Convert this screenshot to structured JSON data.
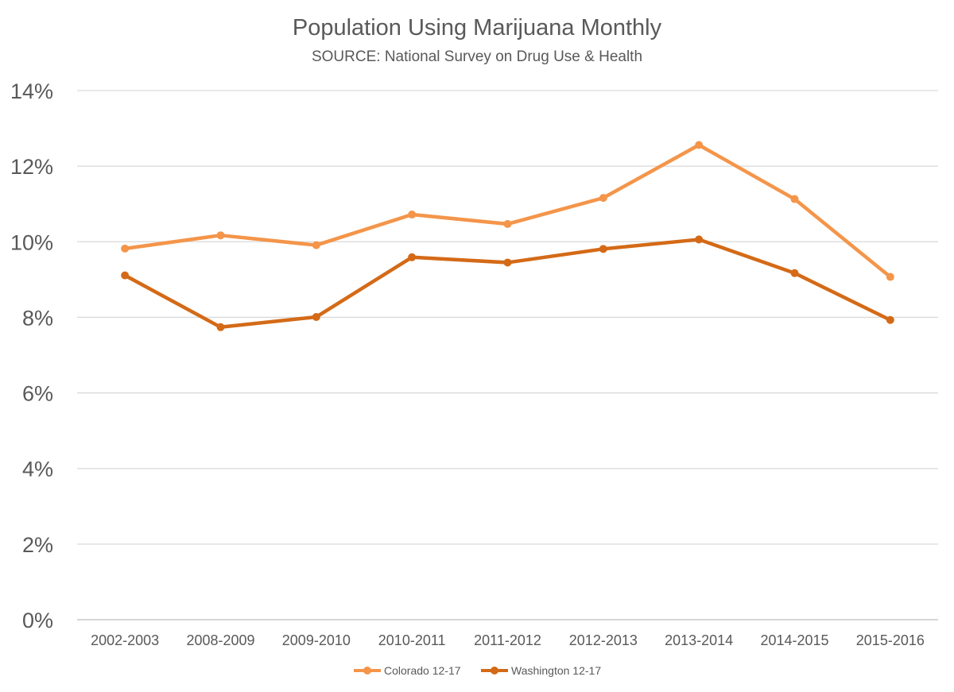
{
  "chart_data": {
    "type": "line",
    "title": "Population Using Marijuana Monthly",
    "subtitle": "SOURCE: National Survey on Drug Use & Health",
    "xlabel": "",
    "ylabel": "",
    "categories": [
      "2002-2003",
      "2008-2009",
      "2009-2010",
      "2010-2011",
      "2011-2012",
      "2012-2013",
      "2013-2014",
      "2014-2015",
      "2015-2016"
    ],
    "y_ticks": [
      "0%",
      "2%",
      "4%",
      "6%",
      "8%",
      "10%",
      "12%",
      "14%"
    ],
    "ylim": [
      0,
      14
    ],
    "grid": true,
    "legend_position": "bottom",
    "series": [
      {
        "name": "Colorado 12-17",
        "color": "#f4954a",
        "values": [
          9.82,
          10.17,
          9.91,
          10.72,
          10.47,
          11.16,
          12.56,
          11.13,
          9.07
        ]
      },
      {
        "name": "Washington 12-17",
        "color": "#d46a17",
        "values": [
          9.11,
          7.74,
          8.01,
          9.59,
          9.45,
          9.81,
          10.06,
          9.17,
          7.93
        ]
      }
    ]
  }
}
